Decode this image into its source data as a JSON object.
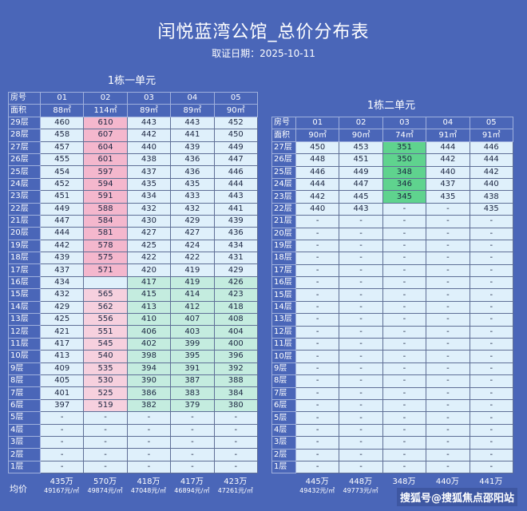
{
  "title": "闰悦蓝湾公馆_总价分布表",
  "subtitle": "取证日期：2025-10-11",
  "labels": {
    "room": "房号",
    "area": "面积",
    "avg": "均价"
  },
  "watermark": "搜狐号@搜狐焦点邵阳站",
  "unit1": {
    "title": "1栋一单元",
    "rooms": [
      "01",
      "02",
      "03",
      "04",
      "05"
    ],
    "areas": [
      "88㎡",
      "114㎡",
      "89㎡",
      "89㎡",
      "90㎡"
    ],
    "rows": [
      {
        "floor": "29层",
        "v": [
          "460",
          "610",
          "443",
          "443",
          "452"
        ]
      },
      {
        "floor": "28层",
        "v": [
          "458",
          "607",
          "442",
          "441",
          "450"
        ]
      },
      {
        "floor": "27层",
        "v": [
          "457",
          "604",
          "440",
          "439",
          "449"
        ]
      },
      {
        "floor": "26层",
        "v": [
          "455",
          "601",
          "438",
          "436",
          "447"
        ]
      },
      {
        "floor": "25层",
        "v": [
          "454",
          "597",
          "437",
          "436",
          "446"
        ]
      },
      {
        "floor": "24层",
        "v": [
          "452",
          "594",
          "435",
          "435",
          "444"
        ]
      },
      {
        "floor": "23层",
        "v": [
          "451",
          "591",
          "434",
          "433",
          "443"
        ]
      },
      {
        "floor": "22层",
        "v": [
          "449",
          "588",
          "432",
          "432",
          "441"
        ]
      },
      {
        "floor": "21层",
        "v": [
          "447",
          "584",
          "430",
          "429",
          "439"
        ]
      },
      {
        "floor": "20层",
        "v": [
          "444",
          "581",
          "427",
          "427",
          "436"
        ]
      },
      {
        "floor": "19层",
        "v": [
          "442",
          "578",
          "425",
          "424",
          "434"
        ]
      },
      {
        "floor": "18层",
        "v": [
          "439",
          "575",
          "422",
          "422",
          "431"
        ]
      },
      {
        "floor": "17层",
        "v": [
          "437",
          "571",
          "420",
          "419",
          "429"
        ]
      },
      {
        "floor": "16层",
        "v": [
          "434",
          "",
          "417",
          "419",
          "426"
        ]
      },
      {
        "floor": "15层",
        "v": [
          "432",
          "565",
          "415",
          "414",
          "423"
        ]
      },
      {
        "floor": "14层",
        "v": [
          "429",
          "562",
          "413",
          "412",
          "418"
        ]
      },
      {
        "floor": "13层",
        "v": [
          "425",
          "556",
          "410",
          "407",
          "408"
        ]
      },
      {
        "floor": "12层",
        "v": [
          "421",
          "551",
          "406",
          "403",
          "404"
        ]
      },
      {
        "floor": "11层",
        "v": [
          "417",
          "545",
          "402",
          "399",
          "400"
        ]
      },
      {
        "floor": "10层",
        "v": [
          "413",
          "540",
          "398",
          "395",
          "396"
        ]
      },
      {
        "floor": "9层",
        "v": [
          "409",
          "535",
          "394",
          "391",
          "392"
        ]
      },
      {
        "floor": "8层",
        "v": [
          "405",
          "530",
          "390",
          "387",
          "388"
        ]
      },
      {
        "floor": "7层",
        "v": [
          "401",
          "525",
          "386",
          "383",
          "384"
        ]
      },
      {
        "floor": "6层",
        "v": [
          "397",
          "519",
          "382",
          "379",
          "380"
        ]
      },
      {
        "floor": "5层",
        "v": [
          "-",
          "-",
          "-",
          "-",
          "-"
        ]
      },
      {
        "floor": "4层",
        "v": [
          "-",
          "-",
          "-",
          "-",
          "-"
        ]
      },
      {
        "floor": "3层",
        "v": [
          "-",
          "-",
          "-",
          "-",
          "-"
        ]
      },
      {
        "floor": "2层",
        "v": [
          "-",
          "-",
          "-",
          "-",
          "-"
        ]
      },
      {
        "floor": "1层",
        "v": [
          "-",
          "-",
          "-",
          "-",
          "-"
        ]
      }
    ],
    "avg_total": [
      "435万",
      "570万",
      "418万",
      "417万",
      "423万"
    ],
    "avg_unit": [
      "49167元/㎡",
      "49874元/㎡",
      "47048元/㎡",
      "46894元/㎡",
      "47261元/㎡"
    ]
  },
  "unit2": {
    "title": "1栋二单元",
    "rooms": [
      "01",
      "02",
      "03",
      "04",
      "05"
    ],
    "areas": [
      "90㎡",
      "90㎡",
      "74㎡",
      "91㎡",
      "91㎡"
    ],
    "rows": [
      {
        "floor": "27层",
        "v": [
          "450",
          "453",
          "351",
          "444",
          "446"
        ]
      },
      {
        "floor": "26层",
        "v": [
          "448",
          "451",
          "350",
          "442",
          "444"
        ]
      },
      {
        "floor": "25层",
        "v": [
          "446",
          "449",
          "348",
          "440",
          "442"
        ]
      },
      {
        "floor": "24层",
        "v": [
          "444",
          "447",
          "346",
          "437",
          "440"
        ]
      },
      {
        "floor": "23层",
        "v": [
          "442",
          "445",
          "345",
          "435",
          "438"
        ]
      },
      {
        "floor": "22层",
        "v": [
          "440",
          "443",
          "-",
          "-",
          "435"
        ]
      },
      {
        "floor": "21层",
        "v": [
          "-",
          "-",
          "-",
          "-",
          "-"
        ]
      },
      {
        "floor": "20层",
        "v": [
          "-",
          "-",
          "-",
          "-",
          "-"
        ]
      },
      {
        "floor": "19层",
        "v": [
          "-",
          "-",
          "-",
          "-",
          "-"
        ]
      },
      {
        "floor": "18层",
        "v": [
          "-",
          "-",
          "-",
          "-",
          "-"
        ]
      },
      {
        "floor": "17层",
        "v": [
          "-",
          "-",
          "-",
          "-",
          "-"
        ]
      },
      {
        "floor": "16层",
        "v": [
          "-",
          "-",
          "-",
          "-",
          "-"
        ]
      },
      {
        "floor": "15层",
        "v": [
          "-",
          "-",
          "-",
          "-",
          "-"
        ]
      },
      {
        "floor": "14层",
        "v": [
          "-",
          "-",
          "-",
          "-",
          "-"
        ]
      },
      {
        "floor": "13层",
        "v": [
          "-",
          "-",
          "-",
          "-",
          "-"
        ]
      },
      {
        "floor": "12层",
        "v": [
          "-",
          "-",
          "-",
          "-",
          "-"
        ]
      },
      {
        "floor": "11层",
        "v": [
          "-",
          "-",
          "-",
          "-",
          "-"
        ]
      },
      {
        "floor": "10层",
        "v": [
          "-",
          "-",
          "-",
          "-",
          "-"
        ]
      },
      {
        "floor": "9层",
        "v": [
          "-",
          "-",
          "-",
          "-",
          "-"
        ]
      },
      {
        "floor": "8层",
        "v": [
          "-",
          "-",
          "-",
          "-",
          "-"
        ]
      },
      {
        "floor": "7层",
        "v": [
          "-",
          "-",
          "-",
          "-",
          "-"
        ]
      },
      {
        "floor": "6层",
        "v": [
          "-",
          "-",
          "-",
          "-",
          "-"
        ]
      },
      {
        "floor": "5层",
        "v": [
          "-",
          "-",
          "-",
          "-",
          "-"
        ]
      },
      {
        "floor": "4层",
        "v": [
          "-",
          "-",
          "-",
          "-",
          "-"
        ]
      },
      {
        "floor": "3层",
        "v": [
          "-",
          "-",
          "-",
          "-",
          "-"
        ]
      },
      {
        "floor": "2层",
        "v": [
          "-",
          "-",
          "-",
          "-",
          "-"
        ]
      },
      {
        "floor": "1层",
        "v": [
          "-",
          "-",
          "-",
          "-",
          "-"
        ]
      }
    ],
    "avg_total": [
      "445万",
      "448万",
      "348万",
      "440万",
      "441万"
    ],
    "avg_unit": [
      "49432元/㎡",
      "49773元/㎡",
      "",
      "",
      ""
    ]
  }
}
